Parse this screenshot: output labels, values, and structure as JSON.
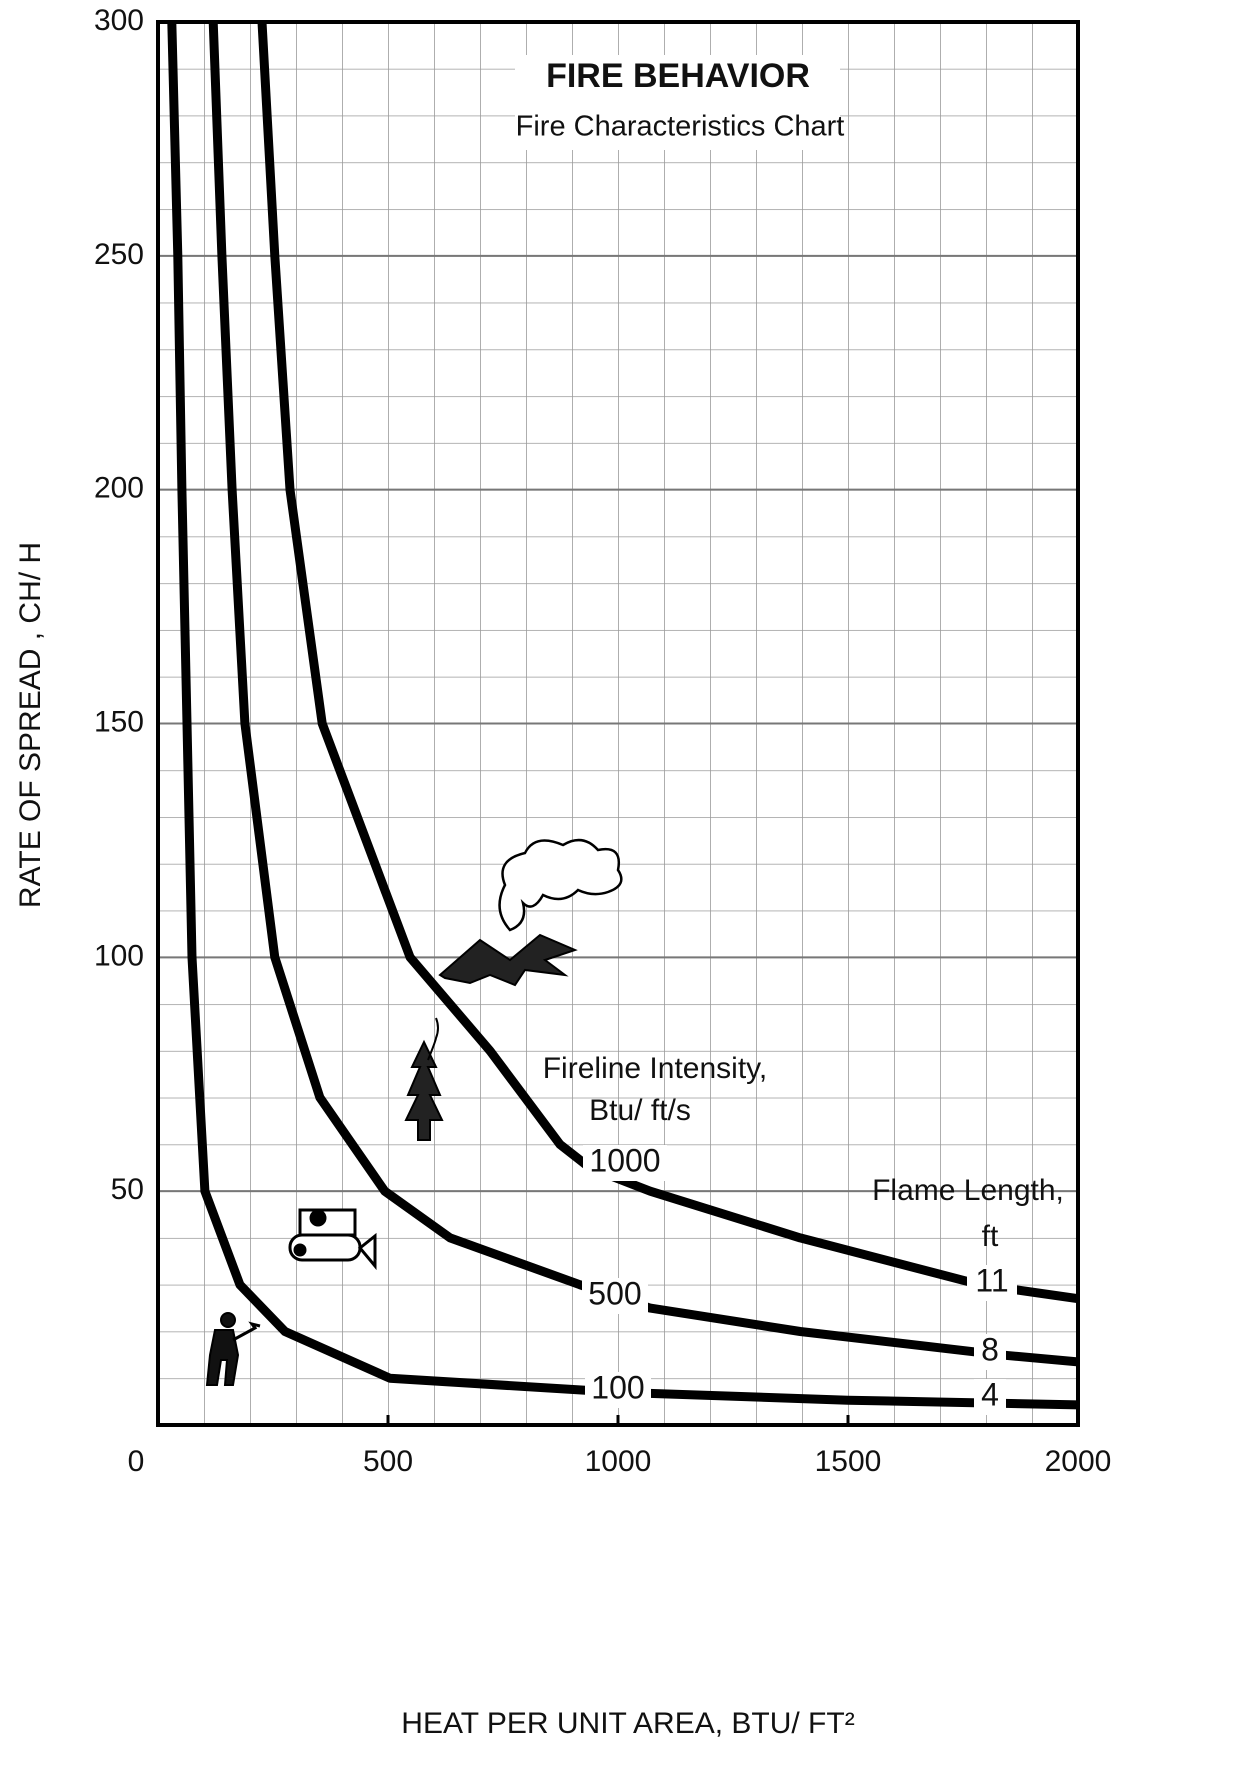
{
  "chart_data": {
    "type": "line",
    "title": "FIRE BEHAVIOR",
    "subtitle": "Fire Characteristics Chart",
    "x_label": "HEAT PER UNIT AREA, BTU/ FT²",
    "y_label": "RATE OF SPREAD , CH/ H",
    "annotations": [
      "Fireline Intensity,",
      "Btu/ ft/s",
      "Flame Length,",
      "ft"
    ],
    "xlim": [
      0,
      2000
    ],
    "ylim": [
      0,
      300
    ],
    "xticks": [
      0,
      500,
      1000,
      1500,
      2000
    ],
    "yticks": [
      50,
      100,
      150,
      200,
      250,
      300
    ],
    "grid": true,
    "series": [
      {
        "name": "100",
        "flame_length": "4",
        "color": "#000000",
        "x": [
          30,
          43,
          52,
          63,
          74,
          102,
          178,
          276,
          504,
          1000,
          1500,
          2000
        ],
        "values": [
          300,
          250,
          200,
          150,
          100,
          50,
          30,
          20,
          10,
          7,
          5.3,
          4.3
        ]
      },
      {
        "name": "500",
        "flame_length": "8",
        "color": "#000000",
        "x": [
          120,
          139,
          161,
          189,
          254,
          352,
          493,
          635,
          917,
          1070,
          1396,
          1830,
          2000
        ],
        "values": [
          300,
          250,
          200,
          150,
          100,
          70,
          50,
          40,
          30,
          25,
          20,
          15,
          13.5
        ]
      },
      {
        "name": "1000",
        "flame_length": "11",
        "color": "#000000",
        "x": [
          226,
          254,
          287,
          357,
          548,
          722,
          874,
          939,
          1070,
          1396,
          1787,
          2000
        ],
        "values": [
          300,
          250,
          200,
          150,
          100,
          80,
          60,
          55,
          50,
          40,
          30,
          27
        ]
      }
    ]
  }
}
